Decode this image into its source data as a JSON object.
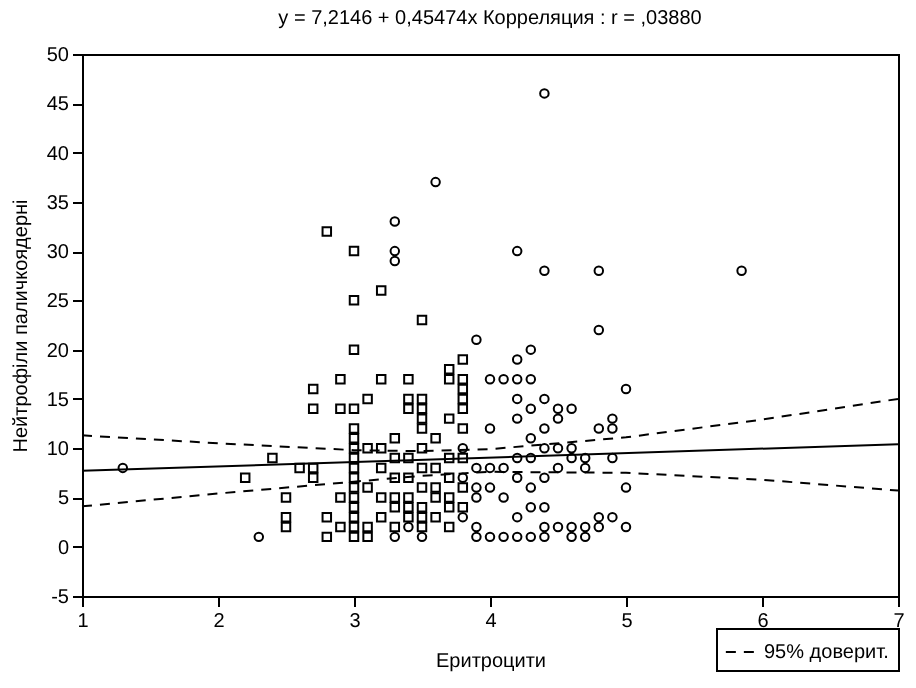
{
  "chart_data": {
    "type": "scatter",
    "title": "y = 7,2146 + 0,45474x  Корреляция : r = ,03880",
    "xlabel": "Еритроцити",
    "ylabel": "Нейтрофіли паличкоядерні",
    "xlim": [
      1,
      7
    ],
    "xticks": [
      1,
      2,
      3,
      4,
      5,
      6,
      7
    ],
    "ylim": [
      -5,
      50
    ],
    "yticks": [
      -5,
      0,
      5,
      10,
      15,
      20,
      25,
      30,
      35,
      40,
      45,
      50
    ],
    "grid": false,
    "legend": "bottom right",
    "series": [
      {
        "type": "scatter",
        "marker": "square",
        "color": "#000000",
        "x": [
          2.2,
          2.4,
          2.5,
          2.5,
          2.5,
          2.6,
          2.7,
          2.7,
          2.7,
          2.7,
          2.8,
          2.8,
          2.8,
          2.9,
          2.9,
          2.9,
          2.9,
          3.0,
          3.0,
          3.0,
          3.0,
          3.0,
          3.0,
          3.0,
          3.0,
          3.0,
          3.0,
          3.0,
          3.0,
          3.0,
          3.0,
          3.0,
          3.0,
          3.1,
          3.1,
          3.1,
          3.1,
          3.1,
          3.2,
          3.2,
          3.2,
          3.2,
          3.2,
          3.2,
          3.3,
          3.3,
          3.3,
          3.3,
          3.3,
          3.3,
          3.4,
          3.4,
          3.4,
          3.4,
          3.4,
          3.4,
          3.4,
          3.4,
          3.5,
          3.5,
          3.5,
          3.5,
          3.5,
          3.5,
          3.5,
          3.5,
          3.5,
          3.5,
          3.5,
          3.6,
          3.6,
          3.6,
          3.6,
          3.6,
          3.7,
          3.7,
          3.7,
          3.7,
          3.7,
          3.7,
          3.7,
          3.7,
          3.8,
          3.8,
          3.8,
          3.8,
          3.8,
          3.8,
          3.8,
          3.8,
          3.8
        ],
        "values": [
          7,
          9,
          5,
          3,
          2,
          8,
          16,
          14,
          8,
          7,
          32,
          3,
          1,
          17,
          14,
          5,
          2,
          30,
          25,
          20,
          14,
          12,
          11,
          10,
          9,
          8,
          7,
          6,
          5,
          4,
          3,
          2,
          1,
          15,
          10,
          6,
          2,
          1,
          26,
          17,
          10,
          8,
          5,
          3,
          11,
          9,
          7,
          5,
          4,
          2,
          17,
          15,
          14,
          9,
          7,
          5,
          4,
          3,
          23,
          15,
          14,
          13,
          12,
          10,
          8,
          6,
          4,
          3,
          2,
          11,
          8,
          6,
          5,
          3,
          18,
          17,
          13,
          9,
          7,
          5,
          4,
          2,
          19,
          17,
          16,
          15,
          14,
          12,
          9,
          6,
          4
        ]
      },
      {
        "type": "scatter",
        "marker": "circle",
        "color": "#000000",
        "x": [
          1.3,
          2.3,
          3.3,
          3.3,
          3.3,
          3.6,
          3.3,
          3.4,
          3.5,
          3.8,
          3.8,
          3.8,
          3.9,
          3.9,
          3.9,
          3.9,
          3.9,
          3.9,
          4.0,
          4.0,
          4.0,
          4.0,
          4.0,
          4.1,
          4.1,
          4.1,
          4.1,
          4.2,
          4.2,
          4.2,
          4.2,
          4.2,
          4.2,
          4.2,
          4.2,
          4.2,
          4.3,
          4.3,
          4.3,
          4.3,
          4.3,
          4.3,
          4.3,
          4.3,
          4.4,
          4.4,
          4.4,
          4.4,
          4.4,
          4.4,
          4.4,
          4.4,
          4.4,
          4.5,
          4.5,
          4.5,
          4.5,
          4.5,
          4.6,
          4.6,
          4.6,
          4.6,
          4.6,
          4.7,
          4.7,
          4.7,
          4.7,
          4.8,
          4.8,
          4.8,
          4.8,
          4.8,
          4.9,
          4.9,
          4.9,
          4.9,
          5.0,
          5.0,
          5.0,
          5.85
        ],
        "values": [
          8,
          1,
          33,
          30,
          29,
          37,
          1,
          2,
          1,
          10,
          7,
          3,
          21,
          8,
          6,
          5,
          2,
          1,
          17,
          12,
          8,
          6,
          1,
          17,
          8,
          5,
          1,
          30,
          19,
          17,
          15,
          13,
          9,
          7,
          3,
          1,
          20,
          17,
          14,
          11,
          9,
          6,
          4,
          1,
          46,
          28,
          15,
          12,
          10,
          7,
          4,
          2,
          1,
          14,
          13,
          10,
          8,
          2,
          14,
          10,
          9,
          2,
          1,
          9,
          8,
          2,
          1,
          28,
          22,
          12,
          3,
          2,
          13,
          12,
          9,
          3,
          16,
          6,
          2,
          28
        ]
      },
      {
        "type": "line",
        "line_style": "solid",
        "color": "#000000",
        "x": [
          1,
          7
        ],
        "values": [
          7.7,
          10.4
        ]
      },
      {
        "type": "line",
        "line_style": "dashed",
        "color": "#000000",
        "x": [
          1,
          2,
          3,
          3.5,
          4,
          5,
          6,
          7
        ],
        "values": [
          11.3,
          10.5,
          9.8,
          9.7,
          9.9,
          11.1,
          12.9,
          15.0
        ]
      },
      {
        "type": "line",
        "line_style": "dashed",
        "name": "95% доверит.",
        "color": "#000000",
        "x": [
          1,
          2,
          3,
          3.5,
          4,
          5,
          6,
          7
        ],
        "values": [
          4.1,
          5.4,
          6.6,
          7.2,
          7.6,
          7.5,
          6.8,
          5.7
        ]
      }
    ]
  }
}
